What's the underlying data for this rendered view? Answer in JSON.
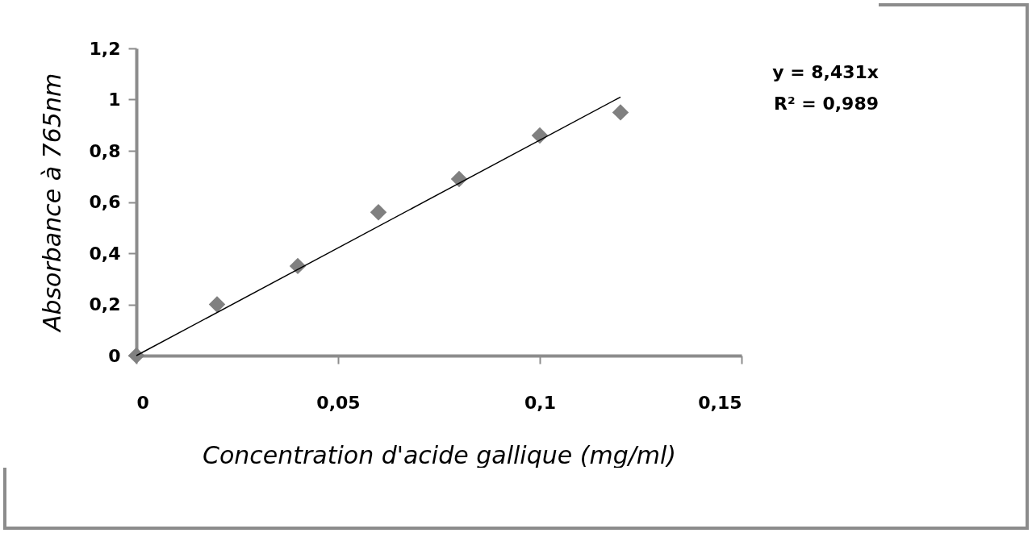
{
  "chart_data": {
    "type": "scatter",
    "xlabel": "Concentration d'acide gallique (mg/ml)",
    "ylabel": "Absorbance à 765nm",
    "x": [
      0,
      0.02,
      0.04,
      0.06,
      0.08,
      0.1,
      0.12
    ],
    "series": [
      {
        "color": "#808080",
        "values": [
          0,
          0.2,
          0.35,
          0.56,
          0.69,
          0.86,
          0.95
        ],
        "marker": "diamond"
      },
      {
        "type": "line",
        "color": "#000000",
        "x": [
          0,
          0.12
        ],
        "values": [
          0,
          1.01
        ],
        "marker": "none"
      }
    ],
    "xlim": [
      0,
      0.15
    ],
    "xticks": [
      0,
      {
        "value": 0.05,
        "label": "0,05"
      },
      {
        "value": 0.1,
        "label": "0,1"
      },
      {
        "value": 0.15,
        "label": "0,15"
      }
    ],
    "ylim": [
      0,
      1.2
    ],
    "yticks": [
      0,
      {
        "value": 0.2,
        "label": "0,2"
      },
      {
        "value": 0.4,
        "label": "0,4"
      },
      {
        "value": 0.6,
        "label": "0,6"
      },
      {
        "value": 0.8,
        "label": "0,8"
      },
      1,
      {
        "value": 1.2,
        "label": "1,2"
      }
    ],
    "grid": false,
    "annotations": [
      "y = 8,431x",
      "R² = 0,989"
    ]
  }
}
